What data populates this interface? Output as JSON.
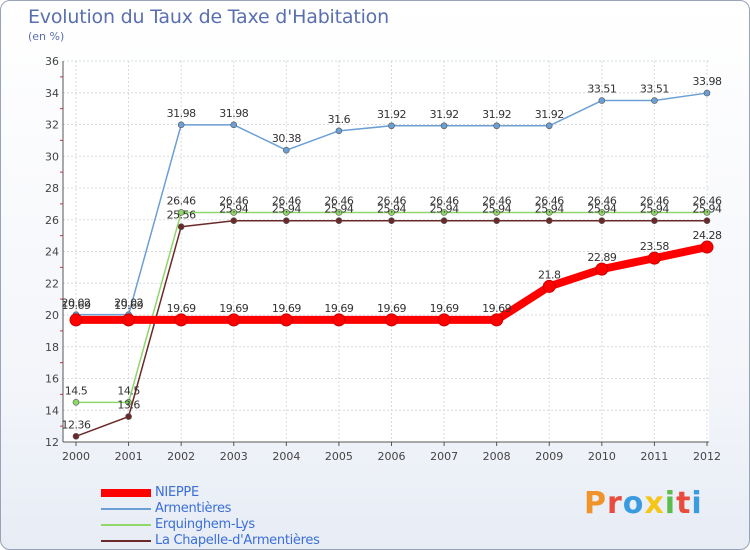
{
  "header": {
    "title": "Evolution du Taux de Taxe d'Habitation",
    "subtitle": "(en %)"
  },
  "logo": {
    "text": "Proxiti",
    "colors": [
      "#f0932b",
      "#e94b3c",
      "#3b9be0",
      "#f5c518",
      "#5bbd4b",
      "#e94b3c",
      "#3b9be0"
    ]
  },
  "chart_data": {
    "type": "line",
    "title": "Evolution du Taux de Taxe d'Habitation",
    "subtitle": "(en %)",
    "xlabel": "",
    "ylabel": "",
    "x": [
      "2000",
      "2001",
      "2002",
      "2003",
      "2004",
      "2005",
      "2006",
      "2007",
      "2008",
      "2009",
      "2010",
      "2011",
      "2012"
    ],
    "ylim": [
      12,
      36
    ],
    "yticks": [
      12,
      14,
      16,
      18,
      20,
      22,
      24,
      26,
      28,
      30,
      32,
      34,
      36
    ],
    "grid": true,
    "legend_position": "bottom-left",
    "series": [
      {
        "name": "NIEPPE",
        "color": "#ff0000",
        "values": [
          19.69,
          19.69,
          19.69,
          19.69,
          19.69,
          19.69,
          19.69,
          19.69,
          19.69,
          21.8,
          22.89,
          23.58,
          24.28
        ],
        "labels": [
          "",
          "",
          "19.69",
          "19.69",
          "19.69",
          "19.69",
          "19.69",
          "19.69",
          "19.69",
          "21.8",
          "22.89",
          "23.58",
          "24.28"
        ]
      },
      {
        "name": "Armentières",
        "color": "#6c9fd4",
        "values": [
          20.02,
          20.02,
          31.98,
          31.98,
          30.38,
          31.6,
          31.92,
          31.92,
          31.92,
          31.92,
          33.51,
          33.51,
          33.98
        ],
        "labels": [
          "20.02",
          "20.02",
          "31.98",
          "31.98",
          "30.38",
          "31.6",
          "31.92",
          "31.92",
          "31.92",
          "31.92",
          "33.51",
          "33.51",
          "33.98"
        ]
      },
      {
        "name": "Erquinghem-Lys",
        "color": "#8fd66b",
        "values": [
          14.5,
          14.5,
          26.46,
          26.46,
          26.46,
          26.46,
          26.46,
          26.46,
          26.46,
          26.46,
          26.46,
          26.46,
          26.46
        ],
        "labels": [
          "14.5",
          "14.5",
          "26.46",
          "26.46",
          "26.46",
          "26.46",
          "26.46",
          "26.46",
          "26.46",
          "26.46",
          "26.46",
          "26.46",
          "26.46"
        ]
      },
      {
        "name": "La Chapelle-d'Armentières",
        "color": "#6b2a2a",
        "values": [
          12.36,
          13.6,
          25.56,
          25.94,
          25.94,
          25.94,
          25.94,
          25.94,
          25.94,
          25.94,
          25.94,
          25.94,
          25.94
        ],
        "labels": [
          "12.36",
          "13.6",
          "25.56",
          "25.94",
          "25.94",
          "25.94",
          "25.94",
          "25.94",
          "25.94",
          "25.94",
          "25.94",
          "25.94",
          "25.94"
        ]
      }
    ],
    "extra_labels": [
      "19.69",
      "19.69"
    ]
  }
}
